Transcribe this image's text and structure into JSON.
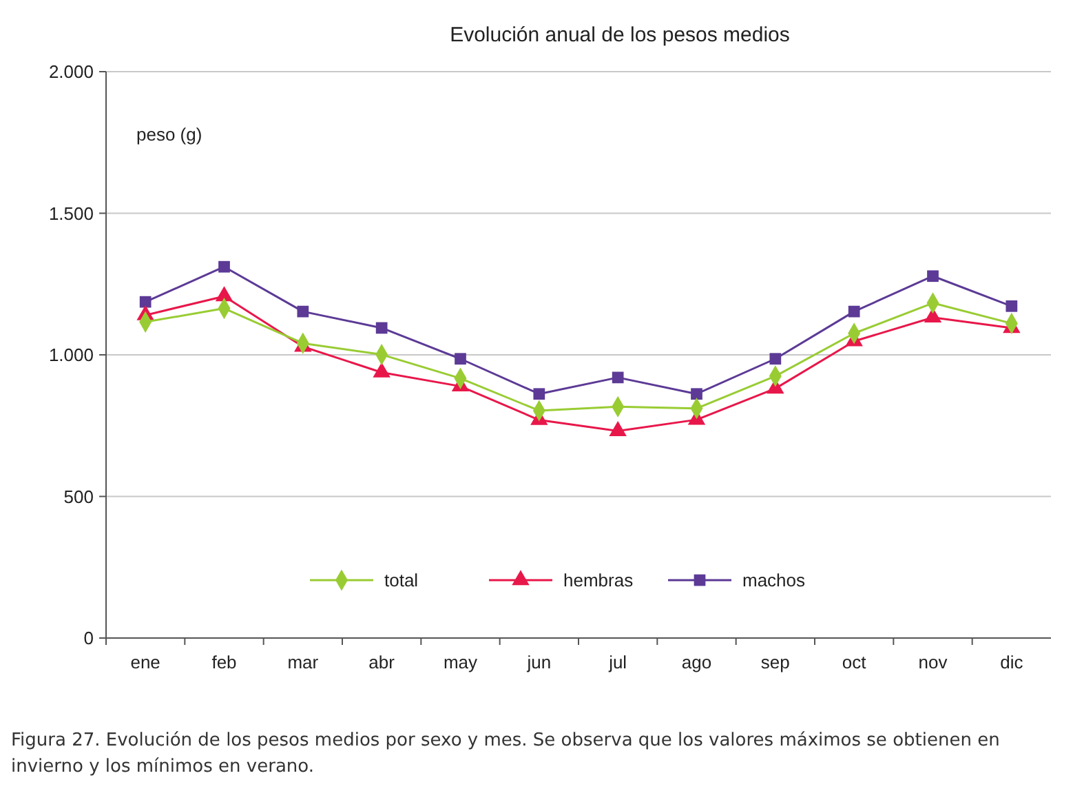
{
  "chart_data": {
    "type": "line",
    "title": "Evolución anual de los pesos medios",
    "ylabel": "peso (g)",
    "categories": [
      "ene",
      "feb",
      "mar",
      "abr",
      "may",
      "jun",
      "jul",
      "ago",
      "sep",
      "oct",
      "nov",
      "dic"
    ],
    "series": [
      {
        "name": "total",
        "color": "#99cc33",
        "marker": "diamond",
        "values": [
          1116,
          1164,
          1041,
          1001,
          917,
          803,
          817,
          811,
          925,
          1076,
          1183,
          1111
        ]
      },
      {
        "name": "hembras",
        "color": "#e8174a",
        "marker": "triangle",
        "values": [
          1140,
          1207,
          1029,
          938,
          889,
          770,
          731,
          771,
          881,
          1048,
          1132,
          1095
        ]
      },
      {
        "name": "machos",
        "color": "#5c3a96",
        "marker": "square",
        "values": [
          1187,
          1311,
          1153,
          1095,
          986,
          862,
          920,
          862,
          986,
          1153,
          1278,
          1172
        ]
      }
    ],
    "ylim": [
      0,
      2000
    ],
    "yticks": [
      {
        "value": 0,
        "label": "0"
      },
      {
        "value": 500,
        "label": "500"
      },
      {
        "value": 1000,
        "label": "1.000"
      },
      {
        "value": 1500,
        "label": "1.500"
      },
      {
        "value": 2000,
        "label": "2.000"
      }
    ],
    "grid": "y",
    "legend": "bottom",
    "line_style": "solid",
    "annotations": [
      "Figura 27. Evolución de los pesos medios por sexo y mes. Se observa que los valores máximos se obtienen en invierno y los mínimos en verano."
    ]
  }
}
